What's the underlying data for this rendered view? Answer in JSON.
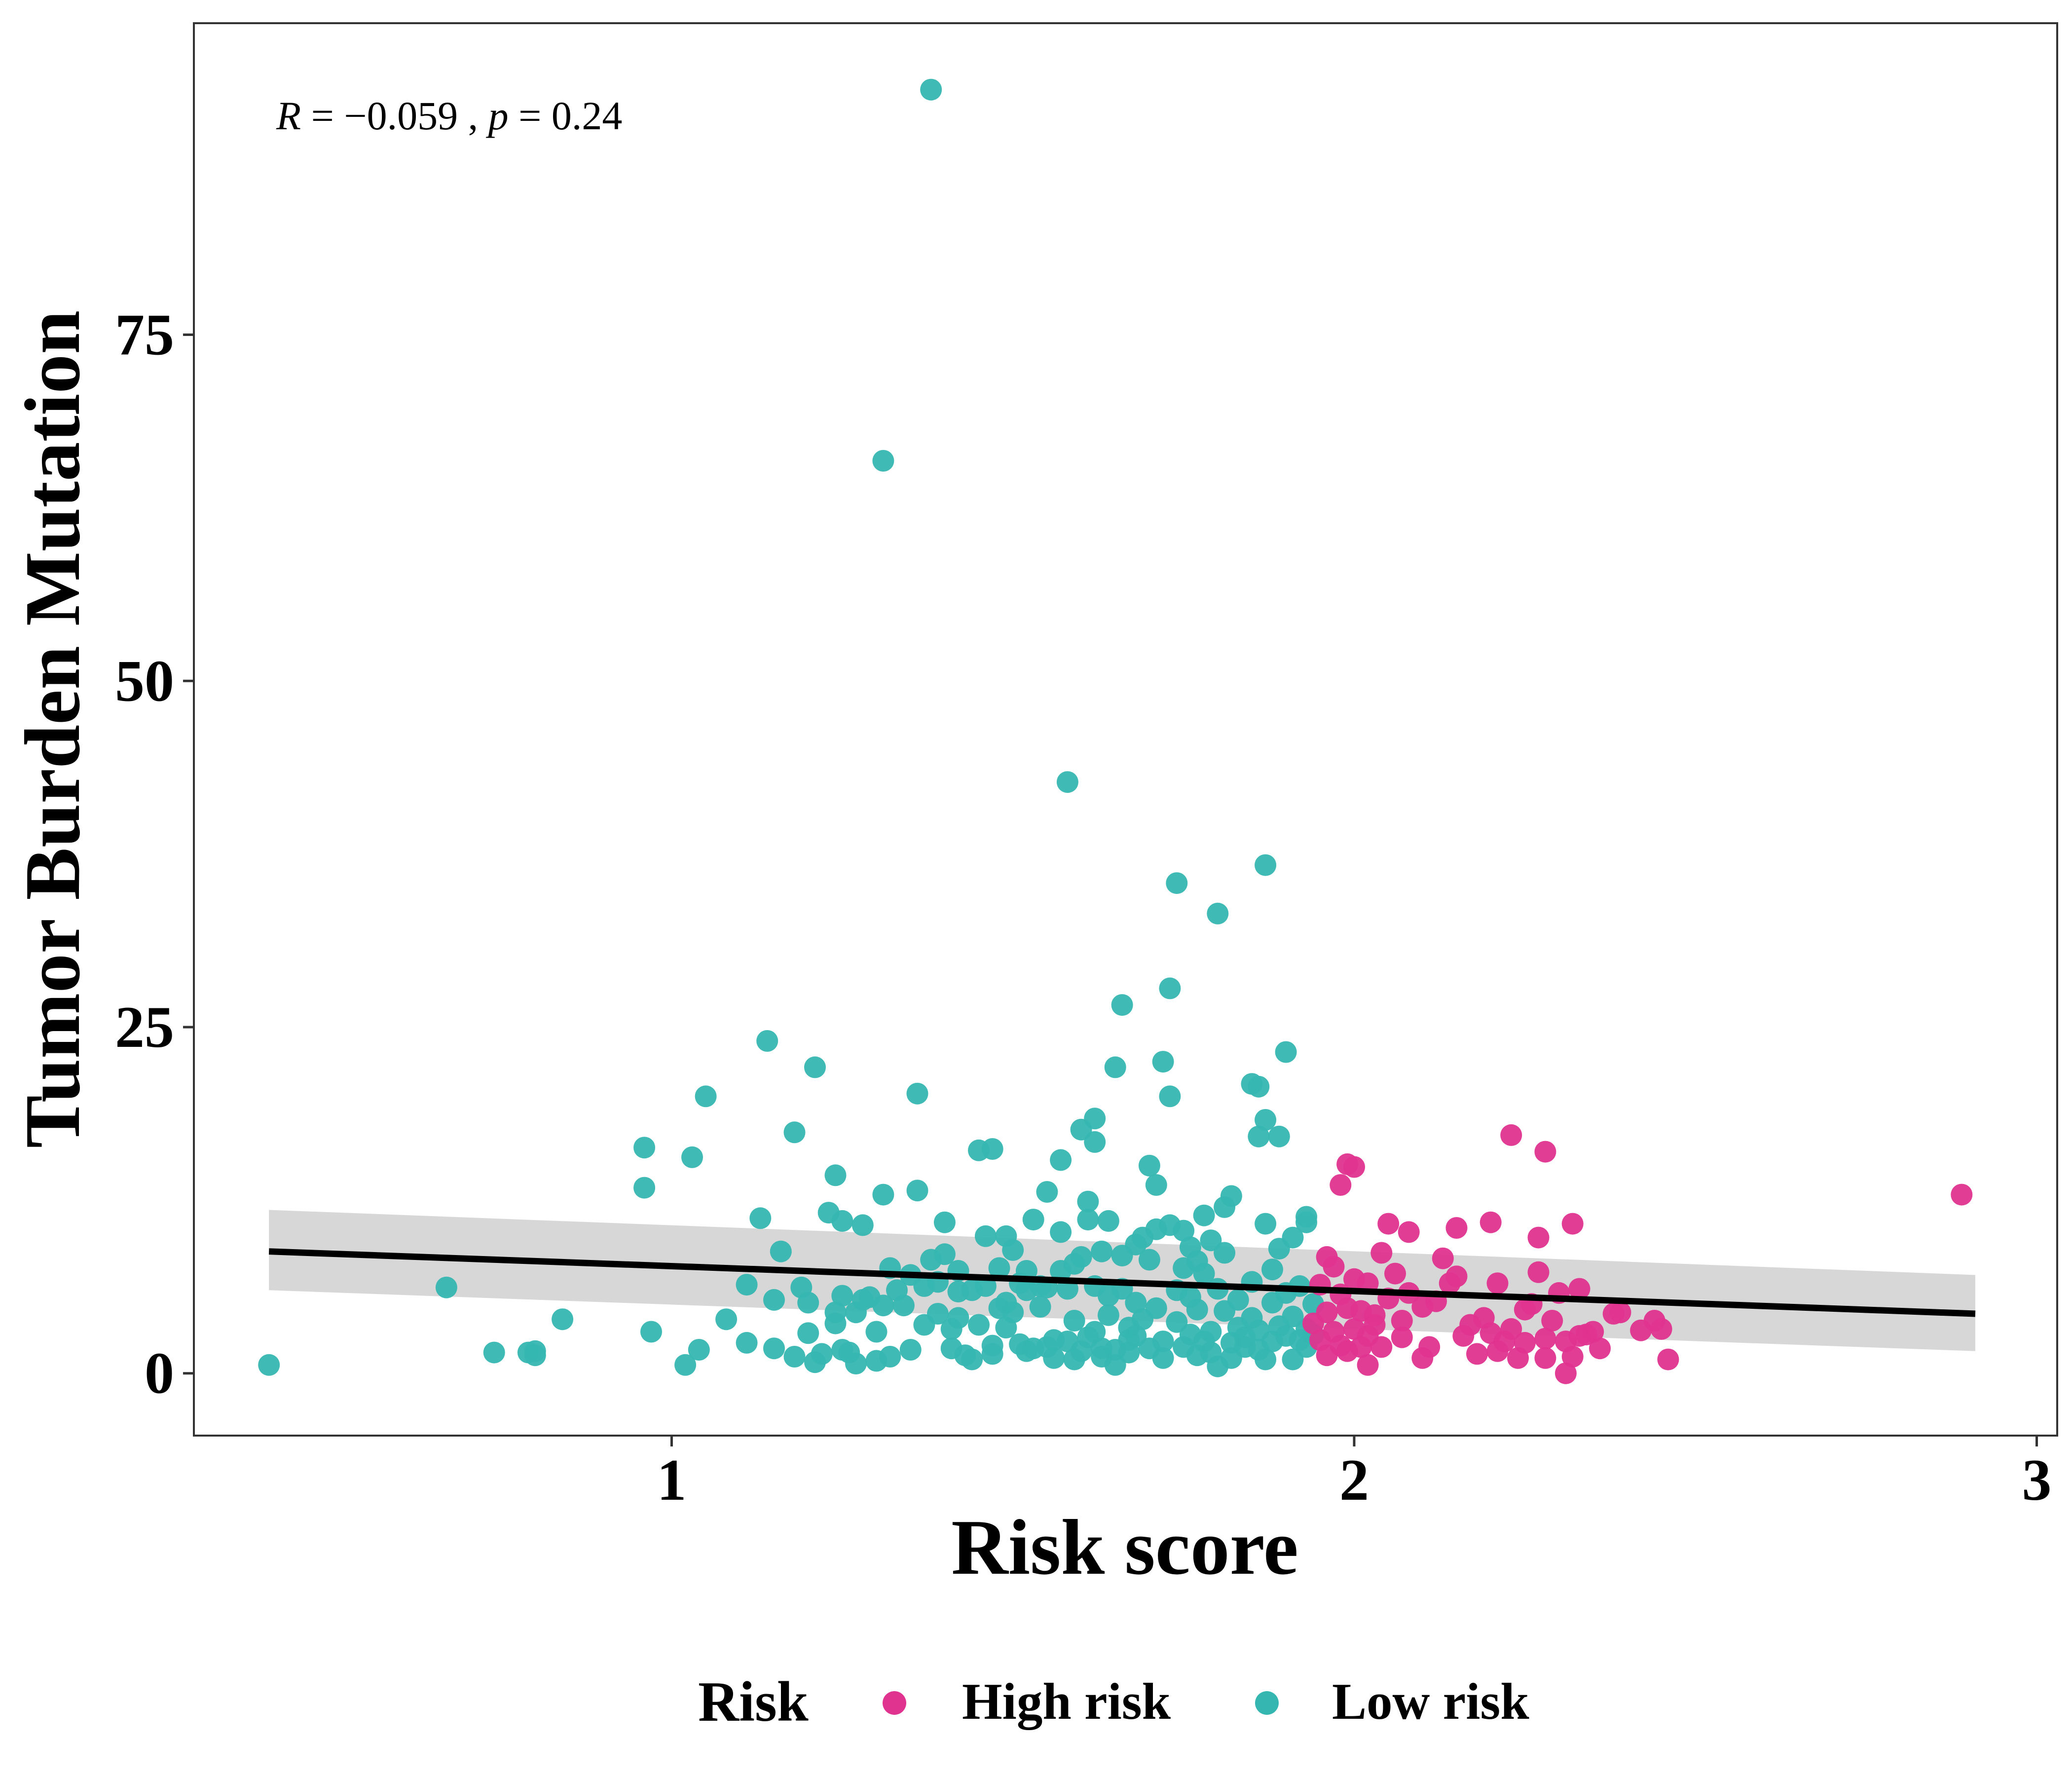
{
  "chart_data": {
    "type": "scatter",
    "xlabel": "Risk score",
    "ylabel": "Tumor Burden Mutation",
    "xlim": [
      0.3,
      3.03
    ],
    "ylim": [
      -4.5,
      97.5
    ],
    "x_ticks": [
      1,
      2,
      3
    ],
    "y_ticks": [
      0,
      25,
      50,
      75
    ],
    "x_tick_labels": [
      "1",
      "2",
      "3"
    ],
    "y_tick_labels": [
      "0",
      "25",
      "50",
      "75"
    ],
    "grid": false,
    "annotation": {
      "r_label": "R",
      "r_value": "−0.059",
      "p_label": "p",
      "p_value": "0.24"
    },
    "regression": {
      "x": [
        0.41,
        2.91
      ],
      "y": [
        8.8,
        4.3
      ],
      "ci_lower": [
        6.0,
        1.6
      ],
      "ci_upper": [
        11.8,
        7.1
      ],
      "color": "#000000",
      "band_color": "#d3d3d3"
    },
    "legend": {
      "title": "Risk",
      "position": "bottom",
      "entries": [
        {
          "name": "High risk",
          "color": "#e0338f"
        },
        {
          "name": "Low risk",
          "color": "#36b6b1"
        }
      ]
    },
    "series": [
      {
        "name": "Low risk",
        "color": "#36b6b1",
        "points": [
          [
            0.41,
            0.6
          ],
          [
            0.67,
            6.2
          ],
          [
            0.74,
            1.5
          ],
          [
            0.79,
            1.5
          ],
          [
            0.8,
            1.6
          ],
          [
            0.8,
            1.3
          ],
          [
            0.84,
            3.9
          ],
          [
            0.96,
            13.4
          ],
          [
            0.96,
            16.3
          ],
          [
            0.97,
            3.0
          ],
          [
            1.03,
            15.6
          ],
          [
            1.05,
            20.0
          ],
          [
            1.02,
            0.6
          ],
          [
            1.04,
            1.7
          ],
          [
            1.08,
            3.9
          ],
          [
            1.11,
            6.4
          ],
          [
            1.13,
            11.2
          ],
          [
            1.14,
            24.0
          ],
          [
            1.16,
            8.8
          ],
          [
            1.15,
            5.3
          ],
          [
            1.11,
            2.2
          ],
          [
            1.15,
            1.8
          ],
          [
            1.18,
            17.4
          ],
          [
            1.19,
            6.2
          ],
          [
            1.18,
            1.2
          ],
          [
            1.2,
            5.1
          ],
          [
            1.2,
            2.9
          ],
          [
            1.21,
            22.1
          ],
          [
            1.21,
            0.8
          ],
          [
            1.22,
            1.4
          ],
          [
            1.23,
            11.6
          ],
          [
            1.24,
            14.3
          ],
          [
            1.24,
            4.4
          ],
          [
            1.24,
            3.6
          ],
          [
            1.25,
            5.6
          ],
          [
            1.25,
            11.0
          ],
          [
            1.25,
            1.7
          ],
          [
            1.26,
            1.5
          ],
          [
            1.27,
            4.4
          ],
          [
            1.27,
            0.7
          ],
          [
            1.28,
            5.3
          ],
          [
            1.28,
            10.7
          ],
          [
            1.29,
            5.5
          ],
          [
            1.3,
            3.0
          ],
          [
            1.3,
            0.9
          ],
          [
            1.31,
            65.9
          ],
          [
            1.31,
            12.9
          ],
          [
            1.31,
            4.9
          ],
          [
            1.32,
            1.2
          ],
          [
            1.32,
            7.6
          ],
          [
            1.33,
            6.0
          ],
          [
            1.34,
            4.9
          ],
          [
            1.35,
            1.7
          ],
          [
            1.35,
            7.1
          ],
          [
            1.36,
            20.2
          ],
          [
            1.36,
            13.2
          ],
          [
            1.37,
            3.5
          ],
          [
            1.37,
            6.3
          ],
          [
            1.38,
            92.7
          ],
          [
            1.38,
            8.2
          ],
          [
            1.39,
            4.3
          ],
          [
            1.39,
            6.6
          ],
          [
            1.4,
            10.9
          ],
          [
            1.4,
            8.6
          ],
          [
            1.41,
            3.2
          ],
          [
            1.41,
            1.8
          ],
          [
            1.42,
            4.0
          ],
          [
            1.42,
            7.4
          ],
          [
            1.42,
            5.9
          ],
          [
            1.43,
            1.3
          ],
          [
            1.44,
            6.0
          ],
          [
            1.44,
            1.0
          ],
          [
            1.45,
            3.5
          ],
          [
            1.45,
            16.1
          ],
          [
            1.46,
            9.9
          ],
          [
            1.46,
            6.3
          ],
          [
            1.47,
            2.0
          ],
          [
            1.47,
            1.4
          ],
          [
            1.47,
            16.2
          ],
          [
            1.48,
            4.7
          ],
          [
            1.48,
            7.6
          ],
          [
            1.49,
            5.1
          ],
          [
            1.49,
            9.9
          ],
          [
            1.49,
            3.3
          ],
          [
            1.5,
            8.9
          ],
          [
            1.5,
            4.4
          ],
          [
            1.51,
            2.1
          ],
          [
            1.51,
            6.5
          ],
          [
            1.52,
            6.0
          ],
          [
            1.52,
            7.4
          ],
          [
            1.52,
            1.6
          ],
          [
            1.53,
            11.1
          ],
          [
            1.53,
            1.8
          ],
          [
            1.54,
            6.3
          ],
          [
            1.54,
            4.8
          ],
          [
            1.55,
            13.1
          ],
          [
            1.55,
            1.9
          ],
          [
            1.55,
            6.2
          ],
          [
            1.56,
            2.4
          ],
          [
            1.56,
            1.1
          ],
          [
            1.57,
            15.4
          ],
          [
            1.57,
            7.4
          ],
          [
            1.57,
            10.2
          ],
          [
            1.58,
            2.3
          ],
          [
            1.58,
            42.7
          ],
          [
            1.58,
            6.1
          ],
          [
            1.59,
            1.0
          ],
          [
            1.59,
            3.8
          ],
          [
            1.59,
            7.9
          ],
          [
            1.6,
            17.6
          ],
          [
            1.6,
            8.4
          ],
          [
            1.6,
            1.6
          ],
          [
            1.61,
            11.1
          ],
          [
            1.61,
            12.4
          ],
          [
            1.61,
            2.6
          ],
          [
            1.62,
            16.7
          ],
          [
            1.62,
            18.4
          ],
          [
            1.62,
            6.3
          ],
          [
            1.62,
            3.0
          ],
          [
            1.63,
            1.8
          ],
          [
            1.63,
            8.8
          ],
          [
            1.63,
            1.2
          ],
          [
            1.64,
            11.0
          ],
          [
            1.64,
            5.6
          ],
          [
            1.64,
            4.2
          ],
          [
            1.65,
            22.1
          ],
          [
            1.65,
            0.6
          ],
          [
            1.65,
            1.7
          ],
          [
            1.66,
            26.6
          ],
          [
            1.66,
            8.5
          ],
          [
            1.66,
            6.1
          ],
          [
            1.67,
            3.3
          ],
          [
            1.67,
            2.4
          ],
          [
            1.67,
            1.5
          ],
          [
            1.68,
            9.3
          ],
          [
            1.68,
            5.1
          ],
          [
            1.68,
            2.7
          ],
          [
            1.69,
            9.8
          ],
          [
            1.69,
            3.9
          ],
          [
            1.7,
            8.2
          ],
          [
            1.7,
            1.8
          ],
          [
            1.7,
            15.0
          ],
          [
            1.71,
            13.6
          ],
          [
            1.71,
            4.7
          ],
          [
            1.71,
            10.4
          ],
          [
            1.72,
            22.5
          ],
          [
            1.72,
            1.1
          ],
          [
            1.72,
            2.3
          ],
          [
            1.73,
            27.8
          ],
          [
            1.73,
            20.0
          ],
          [
            1.73,
            10.7
          ],
          [
            1.74,
            35.4
          ],
          [
            1.74,
            6.0
          ],
          [
            1.74,
            3.7
          ],
          [
            1.75,
            10.3
          ],
          [
            1.75,
            7.6
          ],
          [
            1.75,
            1.9
          ],
          [
            1.76,
            9.1
          ],
          [
            1.76,
            2.8
          ],
          [
            1.76,
            5.5
          ],
          [
            1.77,
            1.3
          ],
          [
            1.77,
            8.1
          ],
          [
            1.77,
            4.6
          ],
          [
            1.78,
            2.3
          ],
          [
            1.78,
            11.4
          ],
          [
            1.78,
            7.2
          ],
          [
            1.79,
            1.5
          ],
          [
            1.79,
            9.6
          ],
          [
            1.79,
            3.0
          ],
          [
            1.8,
            6.1
          ],
          [
            1.8,
            0.5
          ],
          [
            1.8,
            33.2
          ],
          [
            1.81,
            4.5
          ],
          [
            1.81,
            12.0
          ],
          [
            1.81,
            8.7
          ],
          [
            1.82,
            2.2
          ],
          [
            1.82,
            1.1
          ],
          [
            1.82,
            12.8
          ],
          [
            1.83,
            3.3
          ],
          [
            1.83,
            5.3
          ],
          [
            1.84,
            2.6
          ],
          [
            1.84,
            1.9
          ],
          [
            1.85,
            20.9
          ],
          [
            1.85,
            4.0
          ],
          [
            1.85,
            6.6
          ],
          [
            1.86,
            20.7
          ],
          [
            1.86,
            3.1
          ],
          [
            1.86,
            1.7
          ],
          [
            1.86,
            17.1
          ],
          [
            1.87,
            36.7
          ],
          [
            1.87,
            10.8
          ],
          [
            1.87,
            18.3
          ],
          [
            1.87,
            1.0
          ],
          [
            1.88,
            7.5
          ],
          [
            1.88,
            2.3
          ],
          [
            1.88,
            5.1
          ],
          [
            1.89,
            9.0
          ],
          [
            1.89,
            17.1
          ],
          [
            1.89,
            3.4
          ],
          [
            1.9,
            23.2
          ],
          [
            1.9,
            5.8
          ],
          [
            1.9,
            2.7
          ],
          [
            1.91,
            9.8
          ],
          [
            1.91,
            1.0
          ],
          [
            1.91,
            4.1
          ],
          [
            1.92,
            6.3
          ],
          [
            1.92,
            2.4
          ],
          [
            1.93,
            11.3
          ],
          [
            1.93,
            10.9
          ],
          [
            1.93,
            3.2
          ],
          [
            1.93,
            1.9
          ],
          [
            1.94,
            5.0
          ],
          [
            1.94,
            2.8
          ]
        ]
      },
      {
        "name": "High risk",
        "color": "#e0338f",
        "points": [
          [
            1.94,
            3.6
          ],
          [
            1.95,
            6.4
          ],
          [
            1.95,
            2.4
          ],
          [
            1.96,
            8.4
          ],
          [
            1.96,
            1.3
          ],
          [
            1.96,
            4.4
          ],
          [
            1.97,
            7.7
          ],
          [
            1.97,
            3.0
          ],
          [
            1.98,
            13.6
          ],
          [
            1.98,
            5.7
          ],
          [
            1.98,
            2.0
          ],
          [
            1.99,
            15.1
          ],
          [
            1.99,
            4.7
          ],
          [
            1.99,
            1.6
          ],
          [
            2.0,
            6.8
          ],
          [
            2.0,
            3.2
          ],
          [
            2.0,
            14.9
          ],
          [
            2.01,
            4.5
          ],
          [
            2.01,
            1.9
          ],
          [
            2.02,
            2.7
          ],
          [
            2.02,
            0.6
          ],
          [
            2.02,
            6.5
          ],
          [
            2.03,
            4.2
          ],
          [
            2.03,
            3.5
          ],
          [
            2.04,
            1.9
          ],
          [
            2.04,
            8.7
          ],
          [
            2.05,
            10.8
          ],
          [
            2.05,
            5.4
          ],
          [
            2.06,
            7.2
          ],
          [
            2.07,
            3.8
          ],
          [
            2.07,
            2.6
          ],
          [
            2.08,
            10.2
          ],
          [
            2.08,
            5.8
          ],
          [
            2.1,
            4.8
          ],
          [
            2.1,
            1.1
          ],
          [
            2.11,
            1.9
          ],
          [
            2.12,
            5.2
          ],
          [
            2.13,
            8.3
          ],
          [
            2.14,
            6.5
          ],
          [
            2.15,
            10.5
          ],
          [
            2.15,
            7.0
          ],
          [
            2.16,
            2.7
          ],
          [
            2.17,
            3.5
          ],
          [
            2.18,
            1.4
          ],
          [
            2.19,
            4.0
          ],
          [
            2.2,
            10.9
          ],
          [
            2.2,
            2.9
          ],
          [
            2.21,
            6.5
          ],
          [
            2.21,
            1.6
          ],
          [
            2.22,
            2.3
          ],
          [
            2.23,
            3.2
          ],
          [
            2.23,
            17.2
          ],
          [
            2.24,
            1.1
          ],
          [
            2.25,
            4.6
          ],
          [
            2.25,
            2.2
          ],
          [
            2.26,
            5.0
          ],
          [
            2.27,
            9.8
          ],
          [
            2.27,
            7.3
          ],
          [
            2.28,
            16.0
          ],
          [
            2.28,
            2.5
          ],
          [
            2.28,
            1.1
          ],
          [
            2.29,
            3.8
          ],
          [
            2.3,
            5.8
          ],
          [
            2.31,
            2.3
          ],
          [
            2.31,
            0.0
          ],
          [
            2.32,
            10.8
          ],
          [
            2.32,
            1.2
          ],
          [
            2.33,
            2.7
          ],
          [
            2.33,
            6.1
          ],
          [
            2.34,
            2.8
          ],
          [
            2.35,
            3.0
          ],
          [
            2.36,
            1.8
          ],
          [
            2.38,
            4.3
          ],
          [
            2.39,
            4.4
          ],
          [
            2.42,
            3.1
          ],
          [
            2.44,
            3.8
          ],
          [
            2.45,
            3.2
          ],
          [
            2.46,
            1.0
          ],
          [
            2.89,
            12.9
          ]
        ]
      }
    ]
  }
}
